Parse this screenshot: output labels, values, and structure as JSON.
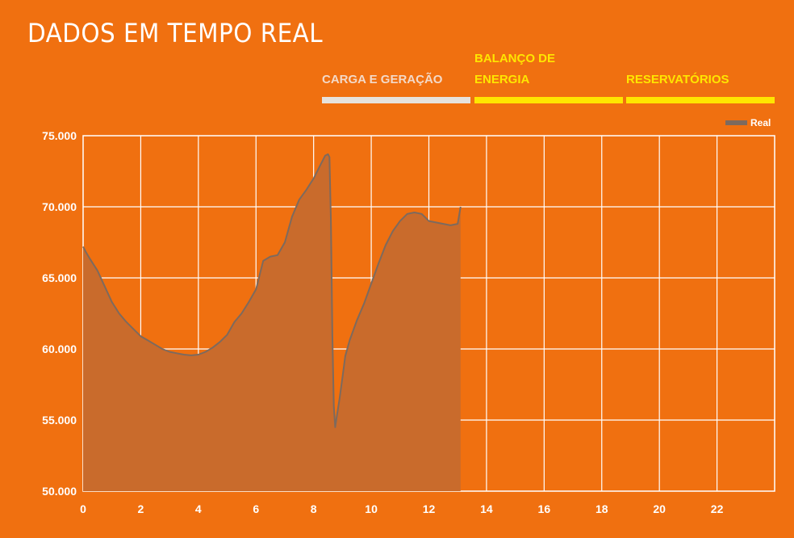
{
  "header": {
    "title": "DADOS EM TEMPO REAL"
  },
  "tabs": [
    {
      "label": "CARGA E GERAÇÃO",
      "state": "active"
    },
    {
      "label": "BALANÇO DE ENERGIA",
      "line1": "BALANÇO DE",
      "line2": "ENERGIA",
      "state": "inactive"
    },
    {
      "label": "RESERVATÓRIOS",
      "state": "inactive"
    }
  ],
  "colors": {
    "background": "#f07010",
    "area_fill": "#c96b2c",
    "line": "#7d6a5e",
    "grid": "#ffffff",
    "active_tab_bar": "#e6e2dd",
    "inactive_tab": "#ffe600"
  },
  "chart_data": {
    "type": "area",
    "title": "",
    "xlabel": "",
    "ylabel": "",
    "xlim": [
      0,
      24
    ],
    "ylim": [
      50000,
      75000
    ],
    "x_ticks": [
      0,
      2,
      4,
      6,
      8,
      10,
      12,
      14,
      16,
      18,
      20,
      22
    ],
    "y_ticks": [
      50000,
      55000,
      60000,
      65000,
      70000,
      75000
    ],
    "y_tick_labels": [
      "50.000",
      "55.000",
      "60.000",
      "65.000",
      "70.000",
      "75.000"
    ],
    "grid": true,
    "legend_position": "top-right",
    "series": [
      {
        "name": "Real",
        "x": [
          0.0,
          0.1,
          0.25,
          0.5,
          0.75,
          1.0,
          1.25,
          1.5,
          1.75,
          2.0,
          2.25,
          2.5,
          2.75,
          3.0,
          3.25,
          3.5,
          3.75,
          4.0,
          4.25,
          4.5,
          4.75,
          5.0,
          5.25,
          5.5,
          5.75,
          6.0,
          6.25,
          6.5,
          6.75,
          7.0,
          7.25,
          7.5,
          7.75,
          8.0,
          8.25,
          8.4,
          8.5,
          8.55,
          8.6,
          8.65,
          8.7,
          8.75,
          8.8,
          8.9,
          9.0,
          9.1,
          9.25,
          9.5,
          9.75,
          10.0,
          10.25,
          10.5,
          10.75,
          11.0,
          11.25,
          11.5,
          11.75,
          12.0,
          12.25,
          12.5,
          12.75,
          13.0,
          13.1
        ],
        "values": [
          67200,
          66800,
          66300,
          65500,
          64400,
          63300,
          62500,
          61900,
          61400,
          60900,
          60600,
          60300,
          60000,
          59800,
          59700,
          59600,
          59550,
          59600,
          59800,
          60100,
          60500,
          61000,
          61900,
          62500,
          63300,
          64200,
          66200,
          66500,
          66600,
          67500,
          69300,
          70500,
          71200,
          72000,
          73000,
          73600,
          73700,
          73500,
          69000,
          61000,
          56000,
          54500,
          55200,
          56500,
          58000,
          59500,
          60600,
          62000,
          63200,
          64600,
          66000,
          67300,
          68300,
          69000,
          69500,
          69600,
          69500,
          69000,
          68900,
          68800,
          68700,
          68800,
          70000
        ]
      }
    ]
  }
}
